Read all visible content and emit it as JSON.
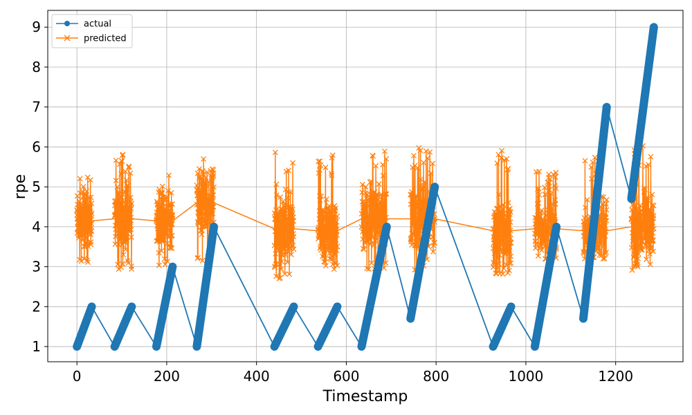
{
  "chart_data": {
    "type": "line",
    "xlabel": "Timestamp",
    "ylabel": "rpe",
    "xlim": [
      -65,
      1350
    ],
    "ylim": [
      0.62,
      9.42
    ],
    "xticks": [
      0,
      200,
      400,
      600,
      800,
      1000,
      1200
    ],
    "yticks": [
      1,
      2,
      3,
      4,
      5,
      6,
      7,
      8,
      9
    ],
    "grid": true,
    "legend_position": "top-left",
    "series": [
      {
        "name": "actual",
        "color": "#1f77b4",
        "marker": "circle",
        "segments": [
          {
            "x": [
              0,
              33
            ],
            "y": [
              1,
              2
            ]
          },
          {
            "x": [
              84,
              122
            ],
            "y": [
              1,
              2
            ]
          },
          {
            "x": [
              177,
              213
            ],
            "y": [
              1,
              3
            ]
          },
          {
            "x": [
              267,
              305
            ],
            "y": [
              1,
              4
            ]
          },
          {
            "x": [
              440,
              483
            ],
            "y": [
              1,
              2
            ]
          },
          {
            "x": [
              537,
              580
            ],
            "y": [
              1,
              2
            ]
          },
          {
            "x": [
              634,
              690
            ],
            "y": [
              1,
              4
            ]
          },
          {
            "x": [
              743,
              797
            ],
            "y": [
              1.7,
              5
            ]
          },
          {
            "x": [
              927,
              967
            ],
            "y": [
              1,
              2
            ]
          },
          {
            "x": [
              1020,
              1068
            ],
            "y": [
              1,
              4
            ]
          },
          {
            "x": [
              1128,
              1180
            ],
            "y": [
              1.7,
              7
            ]
          },
          {
            "x": [
              1235,
              1285
            ],
            "y": [
              4.7,
              9
            ]
          }
        ]
      },
      {
        "name": "predicted",
        "color": "#ff7f0e",
        "marker": "x",
        "clusters": [
          {
            "x": [
              0,
              33
            ],
            "mean": 4.15,
            "low": 3.1,
            "high": 5.4
          },
          {
            "x": [
              84,
              122
            ],
            "mean": 4.2,
            "low": 2.9,
            "high": 5.85
          },
          {
            "x": [
              177,
              213
            ],
            "mean": 4.15,
            "low": 3.0,
            "high": 5.3
          },
          {
            "x": [
              267,
              305
            ],
            "mean": 4.6,
            "low": 3.0,
            "high": 5.75
          },
          {
            "x": [
              440,
              483
            ],
            "mean": 3.95,
            "low": 2.7,
            "high": 5.9
          },
          {
            "x": [
              537,
              580
            ],
            "mean": 3.9,
            "low": 2.9,
            "high": 5.8
          },
          {
            "x": [
              634,
              690
            ],
            "mean": 4.2,
            "low": 2.8,
            "high": 5.95
          },
          {
            "x": [
              743,
              797
            ],
            "mean": 4.2,
            "low": 2.8,
            "high": 6.0
          },
          {
            "x": [
              927,
              967
            ],
            "mean": 3.9,
            "low": 2.8,
            "high": 5.95
          },
          {
            "x": [
              1020,
              1068
            ],
            "mean": 3.95,
            "low": 3.0,
            "high": 5.4
          },
          {
            "x": [
              1128,
              1180
            ],
            "mean": 3.9,
            "low": 3.2,
            "high": 5.8
          },
          {
            "x": [
              1235,
              1285
            ],
            "mean": 4.0,
            "low": 2.85,
            "high": 6.1
          }
        ]
      }
    ]
  }
}
